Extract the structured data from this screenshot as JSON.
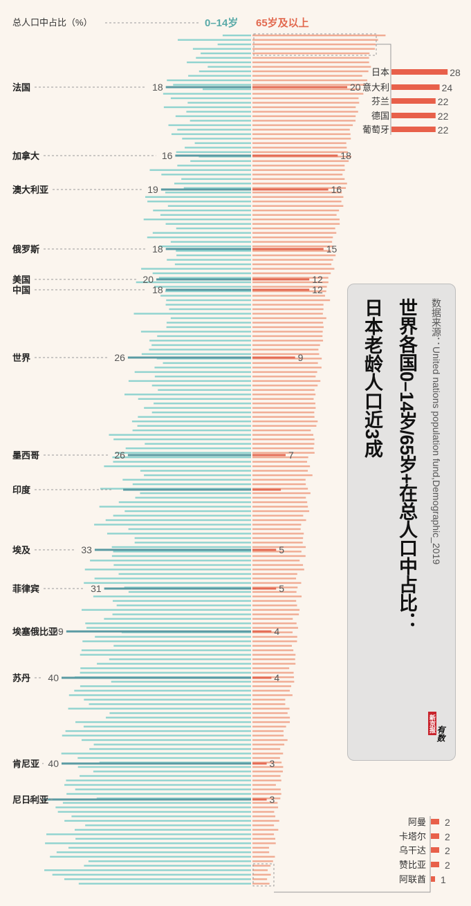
{
  "header": {
    "axis_note": "总人口中占比（%）",
    "young_label": "0–14岁",
    "old_label": "65岁及以上"
  },
  "title": {
    "line1": "世界各国0–14岁/65岁+在总人口中占比：",
    "line2": "日本老龄人口近3成"
  },
  "source": "数据来源：United nations population fund,Demographic_2019",
  "logo": {
    "brand": "新京报",
    "sub": "有数"
  },
  "colors": {
    "young": "#8fd3cf",
    "young_highlight": "#5a9aa3",
    "old": "#f0aa92",
    "old_highlight": "#e46c55",
    "inset_bar": "#e8604a",
    "background": "#fbf5ee"
  },
  "chart_data": {
    "type": "bar",
    "layout": "diverging",
    "x_range_young": [
      0,
      44
    ],
    "x_range_old": [
      0,
      28
    ],
    "highlighted": [
      {
        "country": "法国",
        "young": 18,
        "old": 20
      },
      {
        "country": "加拿大",
        "young": 16,
        "old": 18
      },
      {
        "country": "澳大利亚",
        "young": 19,
        "old": 16
      },
      {
        "country": "俄罗斯",
        "young": 18,
        "old": 15
      },
      {
        "country": "美国",
        "young": 20,
        "old": 12
      },
      {
        "country": "中国",
        "young": 18,
        "old": 12
      },
      {
        "country": "世界",
        "young": 26,
        "old": 9
      },
      {
        "country": "墨西哥",
        "young": 26,
        "old": 7
      },
      {
        "country": "印度",
        "young": 27,
        "old": 6
      },
      {
        "country": "埃及",
        "young": 33,
        "old": 5
      },
      {
        "country": "菲律宾",
        "young": 31,
        "old": 5
      },
      {
        "country": "埃塞俄比亚",
        "young": 39,
        "old": 4
      },
      {
        "country": "苏丹",
        "young": 40,
        "old": 4
      },
      {
        "country": "肯尼亚",
        "young": 40,
        "old": 3
      },
      {
        "country": "尼日利亚",
        "young": 44,
        "old": 3
      }
    ],
    "top_old": [
      {
        "country": "日本",
        "value": 28
      },
      {
        "country": "意大利",
        "value": 24
      },
      {
        "country": "芬兰",
        "value": 22
      },
      {
        "country": "德国",
        "value": 22
      },
      {
        "country": "葡萄牙",
        "value": 22
      }
    ],
    "bottom_old": [
      {
        "country": "阿曼",
        "value": 2
      },
      {
        "country": "卡塔尔",
        "value": 2
      },
      {
        "country": "乌干达",
        "value": 2
      },
      {
        "country": "赞比亚",
        "value": 2
      },
      {
        "country": "阿联酋",
        "value": 1
      }
    ]
  }
}
